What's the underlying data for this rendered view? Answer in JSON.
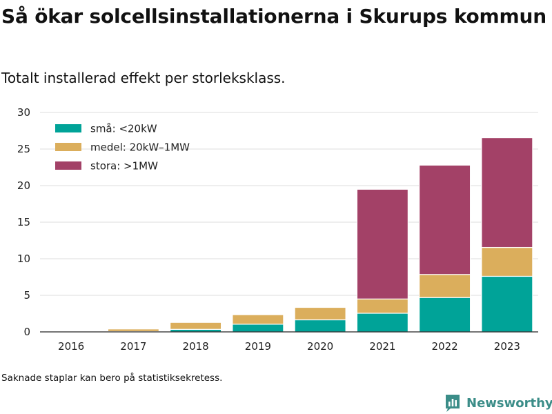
{
  "title": "Så ökar solcellsinstallationerna i Skurups kommun",
  "subtitle": "Totalt installerad effekt per storleksklass.",
  "footnote": "Saknade staplar kan bero på statistiksekretess.",
  "brand": {
    "name": "Newsworthy",
    "icon": "newsworthy-logo-icon"
  },
  "chart_data": {
    "type": "bar",
    "stacked": true,
    "categories": [
      "2016",
      "2017",
      "2018",
      "2019",
      "2020",
      "2021",
      "2022",
      "2023"
    ],
    "series": [
      {
        "name": "små: <20kW",
        "color": "#00a398",
        "values": [
          0,
          0.05,
          0.35,
          1.05,
          1.65,
          2.55,
          4.7,
          7.6
        ]
      },
      {
        "name": "medel: 20kW–1MW",
        "color": "#dbae5c",
        "values": [
          0.05,
          0.35,
          0.95,
          1.3,
          1.7,
          1.95,
          3.15,
          3.95
        ]
      },
      {
        "name": "stora: >1MW",
        "color": "#a34167",
        "values": [
          0,
          0,
          0,
          0,
          0,
          15.0,
          14.95,
          15.0
        ]
      }
    ],
    "ylim": [
      0,
      30
    ],
    "yticks": [
      0,
      5,
      10,
      15,
      20,
      25,
      30
    ],
    "xlabel": "",
    "ylabel": "",
    "grid": true,
    "legend_position": "top-left"
  }
}
